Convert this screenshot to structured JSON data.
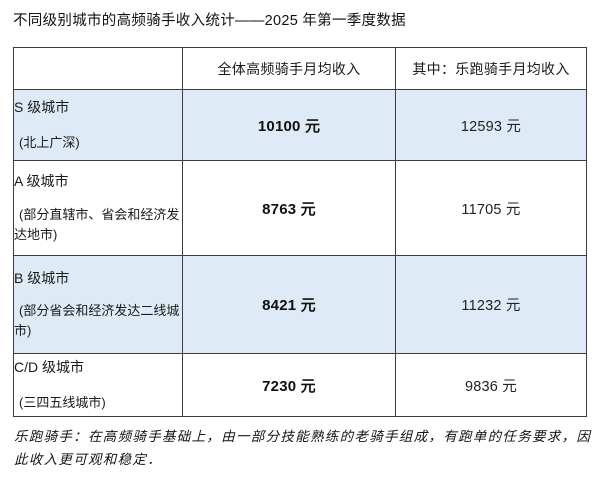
{
  "title": "不同级别城市的高频骑手收入统计——2025 年第一季度数据",
  "table": {
    "headers": [
      "",
      "全体高频骑手月均收入",
      "其中：乐跑骑手月均收入"
    ],
    "highlight_color": "#deeaf6",
    "border_color": "#3d3d3d",
    "rows": [
      {
        "tier": "S 级城市",
        "subtitle": "(北上广深)",
        "all_riders": "10100 元",
        "lepao_riders": "12593 元"
      },
      {
        "tier": "A 级城市",
        "subtitle": "(部分直辖市、省会和经济发达地市)",
        "all_riders": "8763 元",
        "lepao_riders": "11705 元"
      },
      {
        "tier": "B 级城市",
        "subtitle": "(部分省会和经济发达二线城市)",
        "all_riders": "8421 元",
        "lepao_riders": "11232 元"
      },
      {
        "tier": "C/D 级城市",
        "subtitle": "(三四五线城市)",
        "all_riders": "7230 元",
        "lepao_riders": "9836 元"
      }
    ]
  },
  "footnote": "乐跑骑手：在高频骑手基础上，由一部分技能熟练的老骑手组成，有跑单的任务要求，因此收入更可观和稳定．"
}
